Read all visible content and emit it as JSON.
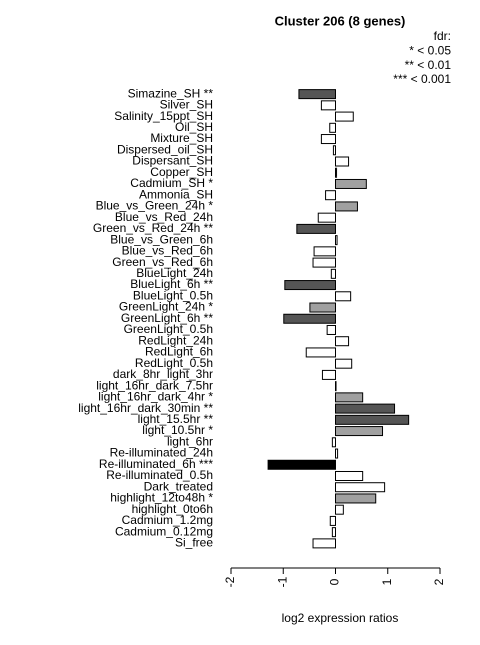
{
  "chart_data": {
    "type": "hbar",
    "title": "Cluster 206 (8 genes)",
    "x_label": "log2 expression ratios",
    "legend_text": [
      "fdr:",
      "* < 0.05",
      "** < 0.01",
      "*** < 0.001"
    ],
    "categories": [
      "Simazine_SH **",
      "Silver_SH",
      "Salinity_15ppt_SH",
      "Oil_SH",
      "Mixture_SH",
      "Dispersed_oil_SH",
      "Dispersant_SH",
      "Copper_SH",
      "Cadmium_SH *",
      "Ammonia_SH",
      "Blue_vs_Green_24h *",
      "Blue_vs_Red_24h",
      "Green_vs_Red_24h **",
      "Blue_vs_Green_6h",
      "Blue_vs_Red_6h",
      "Green_vs_Red_6h",
      "BlueLight_24h",
      "BlueLight_6h **",
      "BlueLight_0.5h",
      "GreenLight_24h *",
      "GreenLight_6h **",
      "GreenLight_0.5h",
      "RedLight_24h",
      "RedLight_6h",
      "RedLight_0.5h",
      "dark_8hr_light_3hr",
      "light_16hr_dark_7.5hr",
      "light_16hr_dark_4hr *",
      "light_16hr_dark_30min **",
      "light_15.5hr **",
      "light_10.5hr *",
      "light_6hr",
      "Re-illuminated_24h",
      "Re-illuminated_6h ***",
      "Re-illuminated_0.5h",
      "Dark_treated",
      "highlight_12to48h *",
      "highlight_0to6h",
      "Cadmium_1.2mg",
      "Cadmium_0.12mg",
      "Si_free"
    ],
    "values": [
      -0.7,
      -0.27,
      0.34,
      -0.11,
      -0.27,
      -0.04,
      0.25,
      0.02,
      0.59,
      -0.19,
      0.42,
      -0.33,
      -0.74,
      0.03,
      -0.41,
      -0.43,
      -0.08,
      -0.97,
      0.29,
      -0.49,
      -0.99,
      -0.16,
      0.25,
      -0.56,
      0.31,
      -0.25,
      0.01,
      0.52,
      1.13,
      1.4,
      0.9,
      -0.06,
      0.04,
      -1.29,
      0.52,
      0.94,
      0.77,
      0.15,
      -0.1,
      -0.06,
      -0.43
    ],
    "colors": [
      "#555555",
      "#ffffff",
      "#ffffff",
      "#ffffff",
      "#ffffff",
      "#ffffff",
      "#ffffff",
      "#ffffff",
      "#a0a0a0",
      "#ffffff",
      "#a0a0a0",
      "#ffffff",
      "#555555",
      "#ffffff",
      "#ffffff",
      "#ffffff",
      "#ffffff",
      "#555555",
      "#ffffff",
      "#a0a0a0",
      "#555555",
      "#ffffff",
      "#ffffff",
      "#ffffff",
      "#ffffff",
      "#ffffff",
      "#ffffff",
      "#a0a0a0",
      "#555555",
      "#555555",
      "#a0a0a0",
      "#ffffff",
      "#ffffff",
      "#000000",
      "#ffffff",
      "#ffffff",
      "#a0a0a0",
      "#ffffff",
      "#ffffff",
      "#ffffff",
      "#ffffff"
    ],
    "xlim": [
      -2,
      2
    ],
    "xticks": [
      -2,
      -1,
      0,
      1,
      2
    ]
  }
}
